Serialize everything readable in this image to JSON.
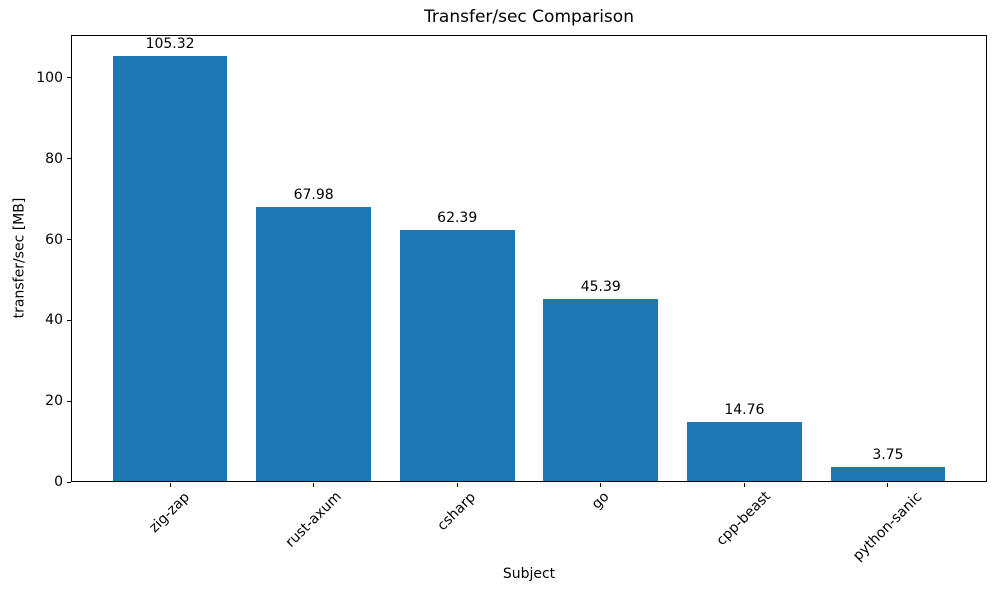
{
  "chart_data": {
    "type": "bar",
    "title": "Transfer/sec Comparison",
    "xlabel": "Subject",
    "ylabel": "transfer/sec [MB]",
    "categories": [
      "zig-zap",
      "rust-axum",
      "csharp",
      "go",
      "cpp-beast",
      "python-sanic"
    ],
    "values": [
      105.32,
      67.98,
      62.39,
      45.39,
      14.76,
      3.75
    ],
    "bar_labels": [
      "105.32",
      "67.98",
      "62.39",
      "45.39",
      "14.76",
      "3.75"
    ],
    "yticks": [
      0,
      20,
      40,
      60,
      80,
      100
    ],
    "ylim": [
      0,
      110.6
    ],
    "bar_color": "#1f77b4",
    "axis_color": "#000000",
    "grid": false,
    "legend": null,
    "x_tick_rotation_deg": 45
  }
}
